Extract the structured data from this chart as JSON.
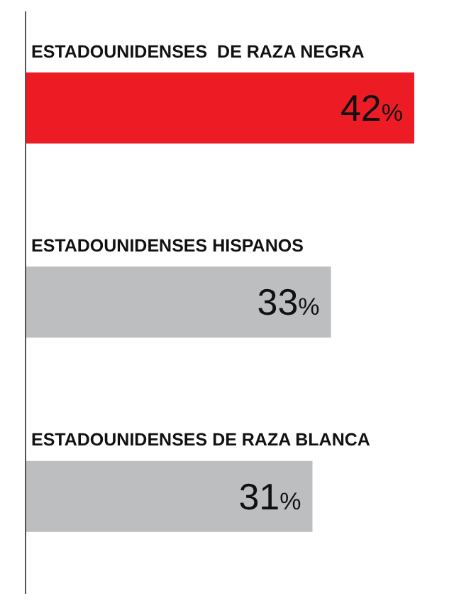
{
  "chart_data": {
    "type": "bar",
    "orientation": "horizontal",
    "categories": [
      "ESTADOUNIDENSES  DE RAZA NEGRA",
      "ESTADOUNIDENSES HISPANOS",
      "ESTADOUNIDENSES DE RAZA BLANCA"
    ],
    "values": [
      42,
      33,
      31
    ],
    "colors": [
      "#ed1c24",
      "#bcbec0",
      "#bcbec0"
    ],
    "value_labels": [
      "42%",
      "33%",
      "31%"
    ]
  }
}
